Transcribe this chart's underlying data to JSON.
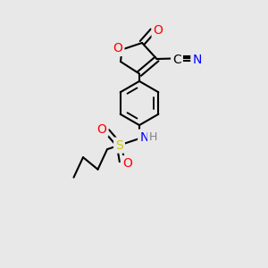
{
  "background_color": "#e8e8e8",
  "bond_color": "#000000",
  "bond_width": 1.5,
  "atom_colors": {
    "O": "#ff0000",
    "N": "#0000ff",
    "S": "#cccc00",
    "C": "#000000",
    "H": "#808080"
  },
  "font_size": 9,
  "fig_width": 3.0,
  "fig_height": 3.0
}
